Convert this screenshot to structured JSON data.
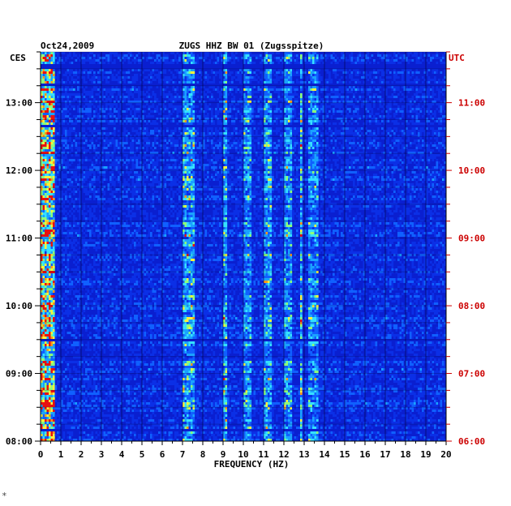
{
  "chart_data": {
    "type": "heatmap",
    "date": "Oct24,2009",
    "station_title": "ZUGS HHZ BW 01 (Zugsspitze)",
    "left_timezone": "CES",
    "right_timezone": "UTC",
    "xlabel": "FREQUENCY (HZ)",
    "x_ticks": [
      "0",
      "1",
      "2",
      "3",
      "4",
      "5",
      "6",
      "7",
      "8",
      "9",
      "10",
      "11",
      "12",
      "13",
      "14",
      "15",
      "16",
      "17",
      "18",
      "19",
      "20"
    ],
    "xlim": [
      0,
      20
    ],
    "left_time_ticks": [
      "13:00",
      "12:00",
      "11:00",
      "10:00",
      "09:00",
      "08:00"
    ],
    "right_time_ticks": [
      "11:00",
      "10:00",
      "09:00",
      "08:00",
      "07:00",
      "06:00"
    ],
    "time_range_ces": [
      "08:00",
      "13:45"
    ],
    "time_range_utc": [
      "06:00",
      "11:45"
    ],
    "grid": true,
    "colors": {
      "background": "#0a1fd0",
      "grid": "#000033",
      "left_labels": "#000000",
      "right_labels": "#cc0000"
    },
    "hot_bands_hz": [
      {
        "from": 0.0,
        "to": 0.7,
        "intensity": 0.9
      },
      {
        "from": 7.0,
        "to": 7.6,
        "intensity": 0.5
      },
      {
        "from": 9.0,
        "to": 9.2,
        "intensity": 0.55
      },
      {
        "from": 10.0,
        "to": 10.4,
        "intensity": 0.4
      },
      {
        "from": 11.0,
        "to": 11.4,
        "intensity": 0.45
      },
      {
        "from": 12.0,
        "to": 12.4,
        "intensity": 0.45
      },
      {
        "from": 12.8,
        "to": 12.9,
        "intensity": 0.6
      },
      {
        "from": 13.2,
        "to": 13.7,
        "intensity": 0.4
      }
    ],
    "dark_gap_times_ces": [
      "08:10",
      "09:30",
      "12:40",
      "13:15",
      "13:32"
    ]
  }
}
